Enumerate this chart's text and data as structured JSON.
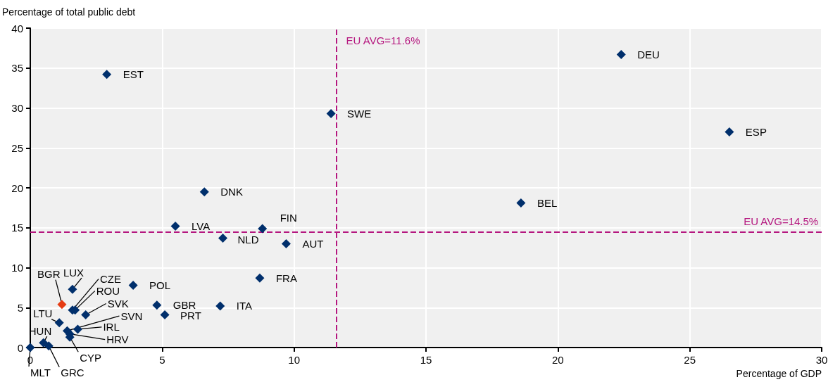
{
  "chart_data": {
    "type": "scatter",
    "xlabel": "Percentage of GDP",
    "ylabel": "Percentage of total public debt",
    "xlim": [
      0,
      30
    ],
    "xticks": [
      0,
      5,
      10,
      15,
      20,
      25,
      30
    ],
    "ylim": [
      0,
      40
    ],
    "yticks": [
      0,
      5,
      10,
      15,
      20,
      25,
      30,
      35,
      40
    ],
    "grid": true,
    "marker": "diamond",
    "series": [
      {
        "colors": [
          "#002f6c",
          "#002f6c",
          "#002f6c",
          "#002f6c",
          "#002f6c",
          "#002f6c",
          "#002f6c",
          "#002f6c",
          "#002f6c",
          "#002f6c",
          "#002f6c",
          "#002f6c",
          "#002f6c",
          "#e63c14",
          "#002f6c",
          "#002f6c",
          "#002f6c",
          "#002f6c",
          "#002f6c",
          "#002f6c",
          "#002f6c",
          "#002f6c",
          "#002f6c",
          "#002f6c",
          "#002f6c",
          "#002f6c",
          "#002f6c",
          "#002f6c"
        ],
        "x": [
          2.9,
          22.4,
          11.4,
          26.5,
          6.6,
          18.6,
          5.5,
          8.8,
          7.3,
          9.7,
          8.7,
          3.9,
          1.6,
          1.2,
          4.8,
          7.2,
          1.6,
          1.7,
          2.1,
          5.1,
          1.1,
          1.8,
          1.4,
          1.5,
          1.5,
          0.5,
          0.7,
          0
        ],
        "values": [
          34.2,
          36.7,
          29.3,
          27.0,
          19.5,
          18.1,
          15.2,
          14.9,
          13.7,
          13.0,
          8.7,
          7.8,
          7.3,
          5.4,
          5.3,
          5.2,
          4.7,
          4.7,
          4.1,
          4.1,
          3.1,
          2.3,
          2.1,
          1.7,
          1.3,
          0.6,
          0.2,
          0
        ]
      }
    ],
    "annotations": [
      {
        "text": "EST",
        "x": 2.9,
        "y": 34.2
      },
      {
        "text": "DEU",
        "x": 22.4,
        "y": 36.7
      },
      {
        "text": "SWE",
        "x": 11.4,
        "y": 29.3
      },
      {
        "text": "ESP",
        "x": 26.5,
        "y": 27.0
      },
      {
        "text": "DNK",
        "x": 6.6,
        "y": 19.5
      },
      {
        "text": "BEL",
        "x": 18.6,
        "y": 18.1
      },
      {
        "text": "LVA",
        "x": 5.5,
        "y": 15.2
      },
      {
        "text": "FIN",
        "x": 8.8,
        "y": 14.9
      },
      {
        "text": "NLD",
        "x": 7.3,
        "y": 13.7
      },
      {
        "text": "AUT",
        "x": 9.7,
        "y": 13.0
      },
      {
        "text": "FRA",
        "x": 8.7,
        "y": 8.7
      },
      {
        "text": "POL",
        "x": 3.9,
        "y": 7.8
      },
      {
        "text": "LUX",
        "x": 1.6,
        "y": 7.3
      },
      {
        "text": "BGR",
        "x": 1.2,
        "y": 5.4
      },
      {
        "text": "GBR",
        "x": 4.8,
        "y": 5.3
      },
      {
        "text": "ITA",
        "x": 7.2,
        "y": 5.2
      },
      {
        "text": "CZE",
        "x": 1.6,
        "y": 4.7
      },
      {
        "text": "ROU",
        "x": 1.7,
        "y": 4.7
      },
      {
        "text": "SVK",
        "x": 2.1,
        "y": 4.1
      },
      {
        "text": "PRT",
        "x": 5.1,
        "y": 4.1
      },
      {
        "text": "LTU",
        "x": 1.1,
        "y": 3.1
      },
      {
        "text": "IRL",
        "x": 1.8,
        "y": 2.3
      },
      {
        "text": "SVN",
        "x": 1.4,
        "y": 2.1
      },
      {
        "text": "HRV",
        "x": 1.5,
        "y": 1.7
      },
      {
        "text": "CYP",
        "x": 1.5,
        "y": 1.3
      },
      {
        "text": "HUN",
        "x": 0.5,
        "y": 0.6
      },
      {
        "text": "GRC",
        "x": 0.7,
        "y": 0.2
      },
      {
        "text": "MLT",
        "x": 0,
        "y": 0
      }
    ],
    "ref_lines": [
      {
        "axis": "x",
        "value": 11.6,
        "label": "EU AVG=11.6%",
        "color": "#b5177f",
        "line_style": "dashed"
      },
      {
        "axis": "y",
        "value": 14.5,
        "label": "EU AVG=14.5%",
        "color": "#b5177f",
        "line_style": "dashed"
      }
    ]
  }
}
